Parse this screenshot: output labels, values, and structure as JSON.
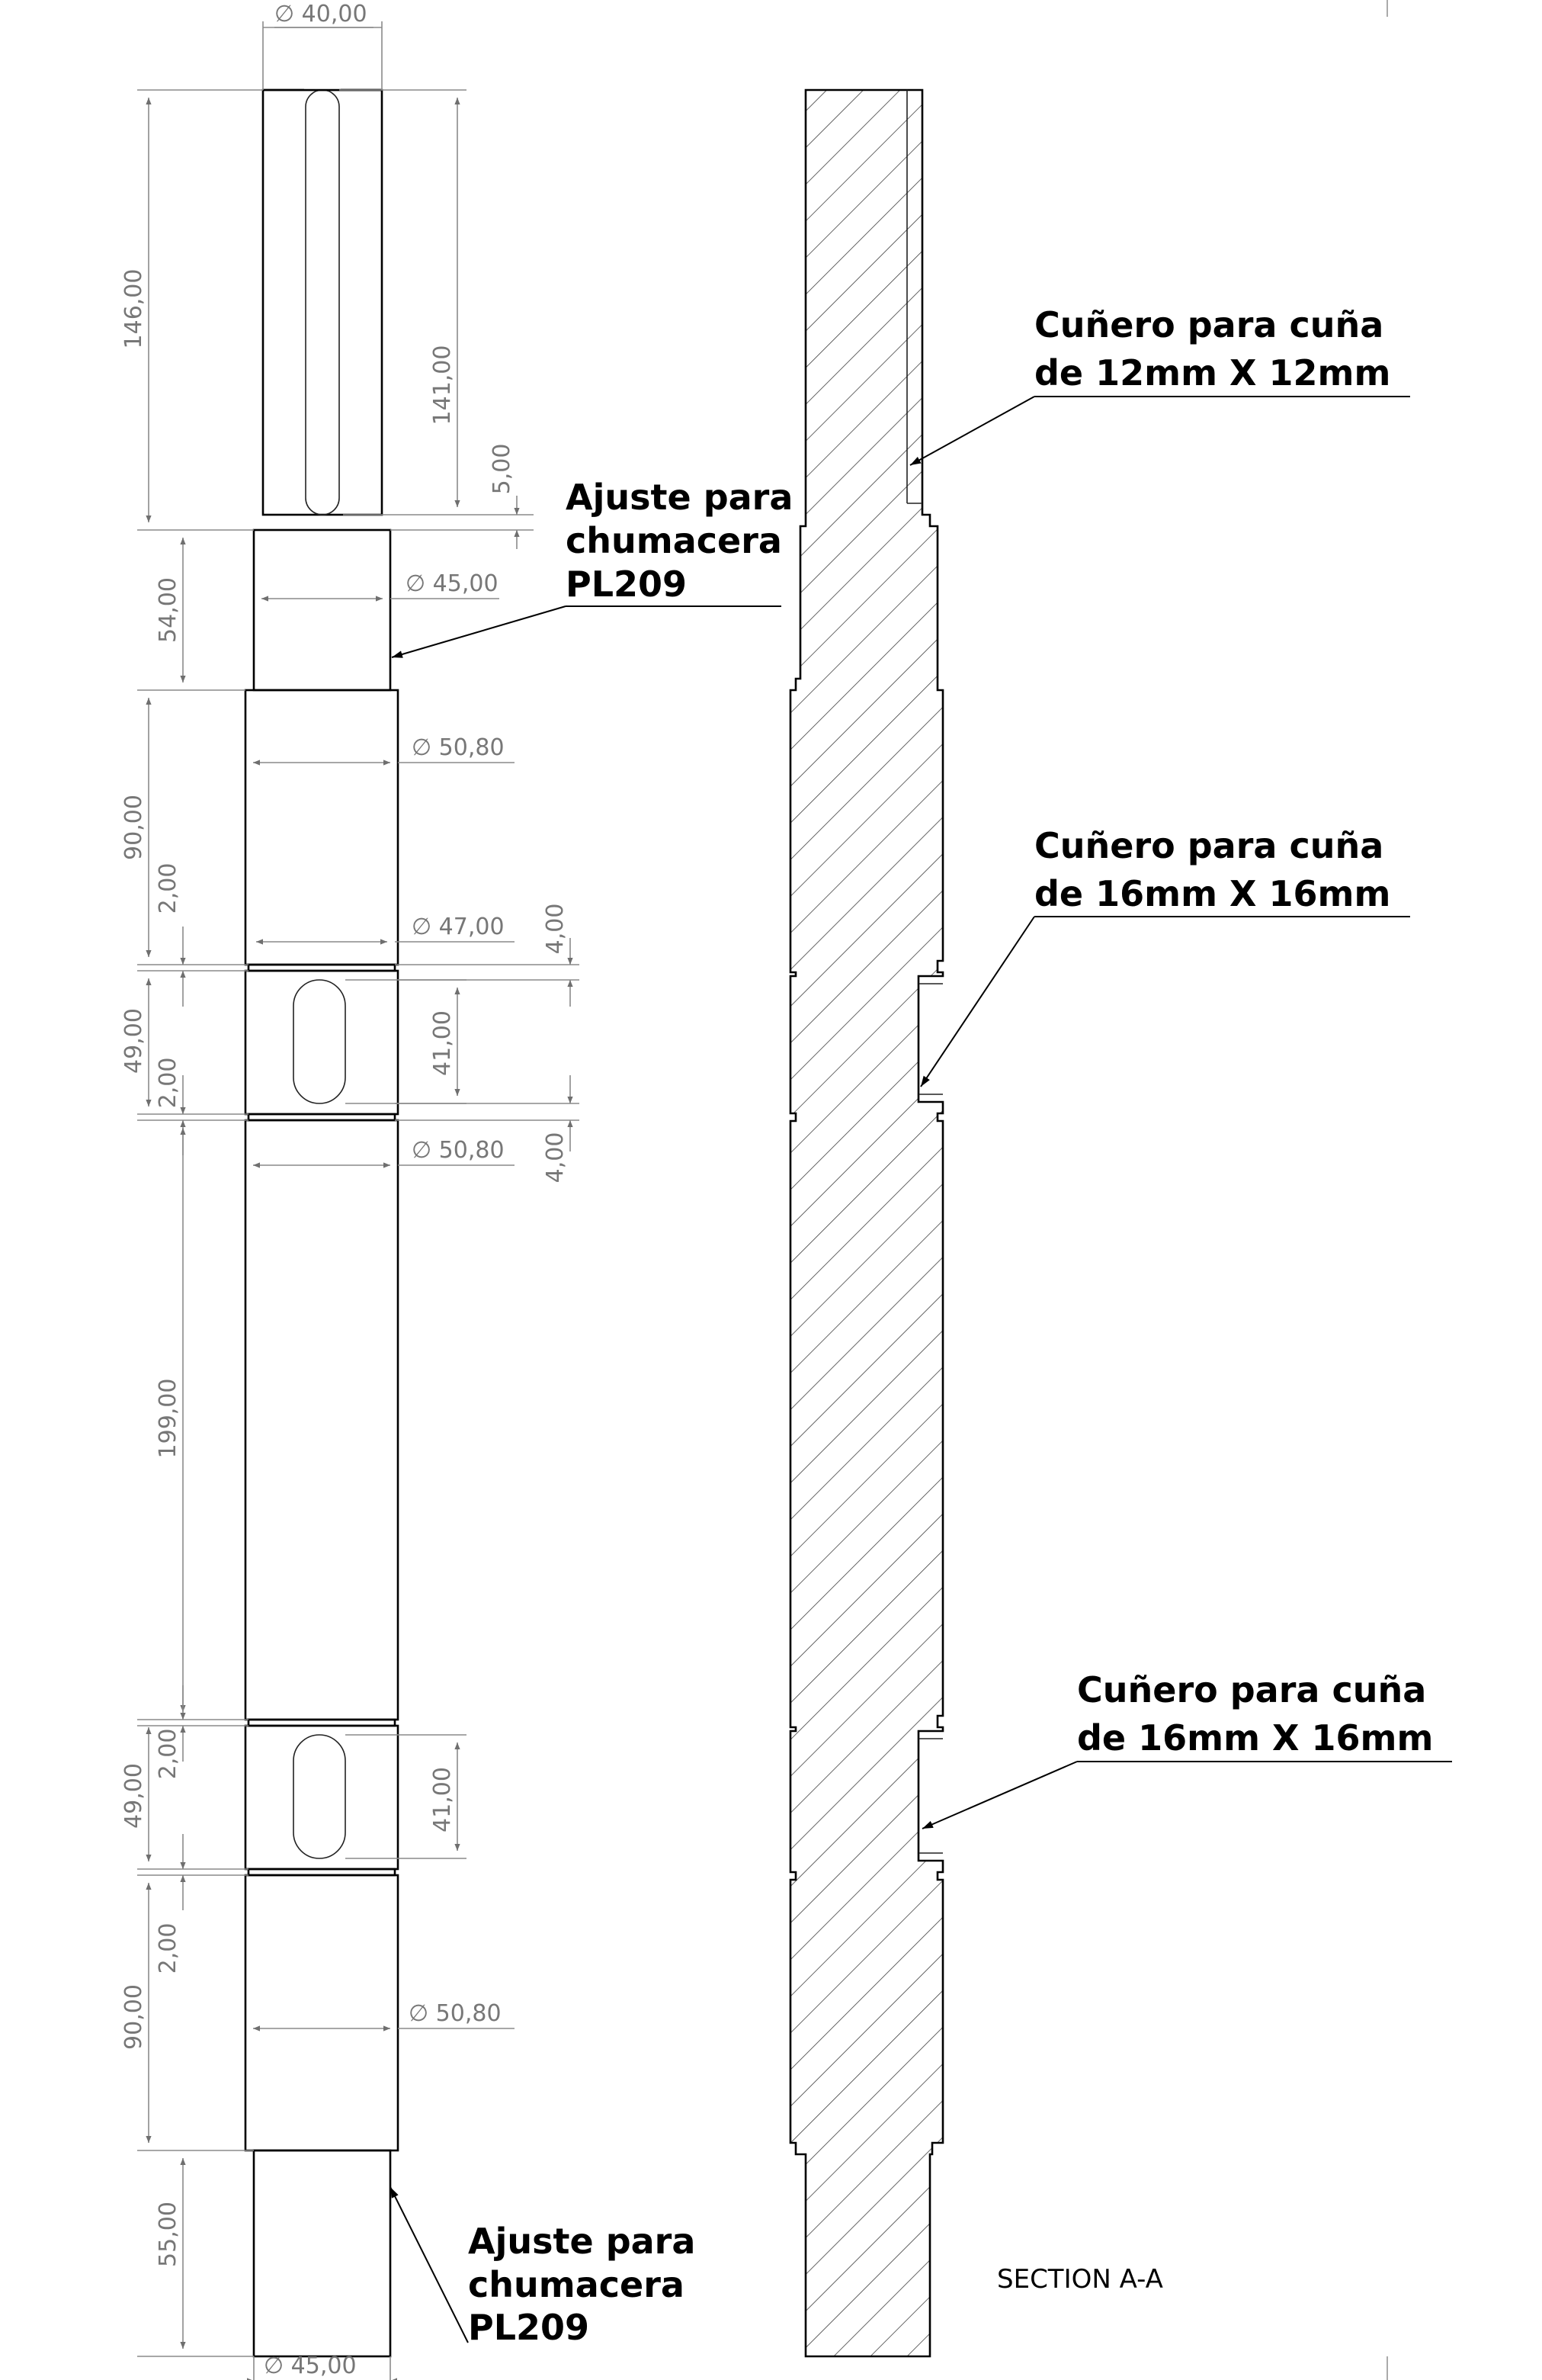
{
  "drawing": {
    "section_label": "SECTION A-A",
    "dimensions": {
      "dia_40": "∅ 40,00",
      "dia_45_top": "∅ 45,00",
      "dia_50_80_a": "∅ 50,80",
      "dia_47": "∅ 47,00",
      "dia_50_80_b": "∅ 50,80",
      "dia_50_80_c": "∅ 50,80",
      "dia_45_bottom": "∅ 45,00",
      "len_146": "146,00",
      "len_141": "141,00",
      "len_5": "5,00",
      "len_54": "54,00",
      "len_90_top": "90,00",
      "len_2_a": "2,00",
      "len_4_a": "4,00",
      "len_49_top": "49,00",
      "len_41_top": "41,00",
      "len_2_b": "2,00",
      "len_4_b": "4,00",
      "len_199": "199,00",
      "len_2_c": "2,00",
      "len_49_bottom": "49,00",
      "len_41_bottom": "41,00",
      "len_2_d": "2,00",
      "len_90_bottom": "90,00",
      "len_55": "55,00"
    },
    "notes": {
      "bearing_top": [
        "Ajuste para",
        "chumacera",
        "PL209"
      ],
      "bearing_bottom": [
        "Ajuste para",
        "chumacera",
        "PL209"
      ],
      "keyway_12": [
        "Cuñero para cuña",
        "de 12mm X 12mm"
      ],
      "keyway_16_top": [
        "Cuñero para cuña",
        "de 16mm X 16mm"
      ],
      "keyway_16_bottom": [
        "Cuñero para cuña",
        "de 16mm X 16mm"
      ]
    }
  }
}
